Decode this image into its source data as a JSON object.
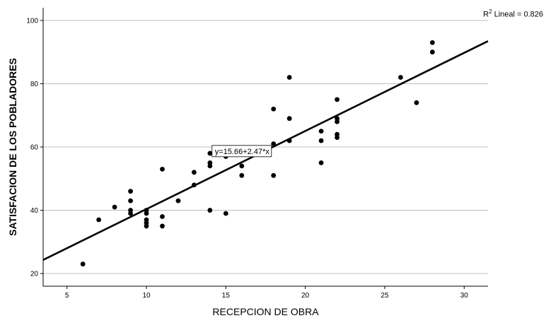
{
  "chart_data": {
    "type": "scatter",
    "xlabel": "RECEPCION DE OBRA",
    "ylabel": "SATISFACION DE LOS POBLADORES",
    "xlim": [
      3.5,
      31.5
    ],
    "ylim": [
      16,
      104
    ],
    "xticks": [
      5,
      10,
      15,
      20,
      25,
      30
    ],
    "yticks": [
      20,
      40,
      60,
      80,
      100
    ],
    "grid": "horizontal",
    "points": [
      {
        "x": 6,
        "y": 23
      },
      {
        "x": 7,
        "y": 37
      },
      {
        "x": 8,
        "y": 41
      },
      {
        "x": 9,
        "y": 46
      },
      {
        "x": 9,
        "y": 43
      },
      {
        "x": 9,
        "y": 40
      },
      {
        "x": 9,
        "y": 39
      },
      {
        "x": 10,
        "y": 40
      },
      {
        "x": 10,
        "y": 39
      },
      {
        "x": 10,
        "y": 37
      },
      {
        "x": 10,
        "y": 36
      },
      {
        "x": 10,
        "y": 35
      },
      {
        "x": 11,
        "y": 53
      },
      {
        "x": 11,
        "y": 38
      },
      {
        "x": 11,
        "y": 35
      },
      {
        "x": 12,
        "y": 43
      },
      {
        "x": 13,
        "y": 52
      },
      {
        "x": 13,
        "y": 48
      },
      {
        "x": 14,
        "y": 58
      },
      {
        "x": 14,
        "y": 55
      },
      {
        "x": 14,
        "y": 54
      },
      {
        "x": 14,
        "y": 40
      },
      {
        "x": 15,
        "y": 57
      },
      {
        "x": 15,
        "y": 39
      },
      {
        "x": 16,
        "y": 54
      },
      {
        "x": 16,
        "y": 51
      },
      {
        "x": 18,
        "y": 72
      },
      {
        "x": 18,
        "y": 61
      },
      {
        "x": 18,
        "y": 51
      },
      {
        "x": 19,
        "y": 82
      },
      {
        "x": 19,
        "y": 69
      },
      {
        "x": 19,
        "y": 62
      },
      {
        "x": 21,
        "y": 65
      },
      {
        "x": 21,
        "y": 62
      },
      {
        "x": 21,
        "y": 55
      },
      {
        "x": 22,
        "y": 75
      },
      {
        "x": 22,
        "y": 69
      },
      {
        "x": 22,
        "y": 68
      },
      {
        "x": 22,
        "y": 64
      },
      {
        "x": 22,
        "y": 63
      },
      {
        "x": 26,
        "y": 82
      },
      {
        "x": 27,
        "y": 74
      },
      {
        "x": 28,
        "y": 93
      },
      {
        "x": 28,
        "y": 90
      }
    ],
    "fit_line": {
      "intercept": 15.66,
      "slope": 2.47,
      "label": "y=15.66+2.47*x"
    },
    "r2_label": {
      "prefix": "R",
      "sup": "2",
      "suffix": " Lineal = 0.826"
    },
    "colors": {
      "points": "#000000",
      "fit_line": "#000000",
      "grid": "#bdbdbd",
      "axes": "#000000"
    }
  }
}
